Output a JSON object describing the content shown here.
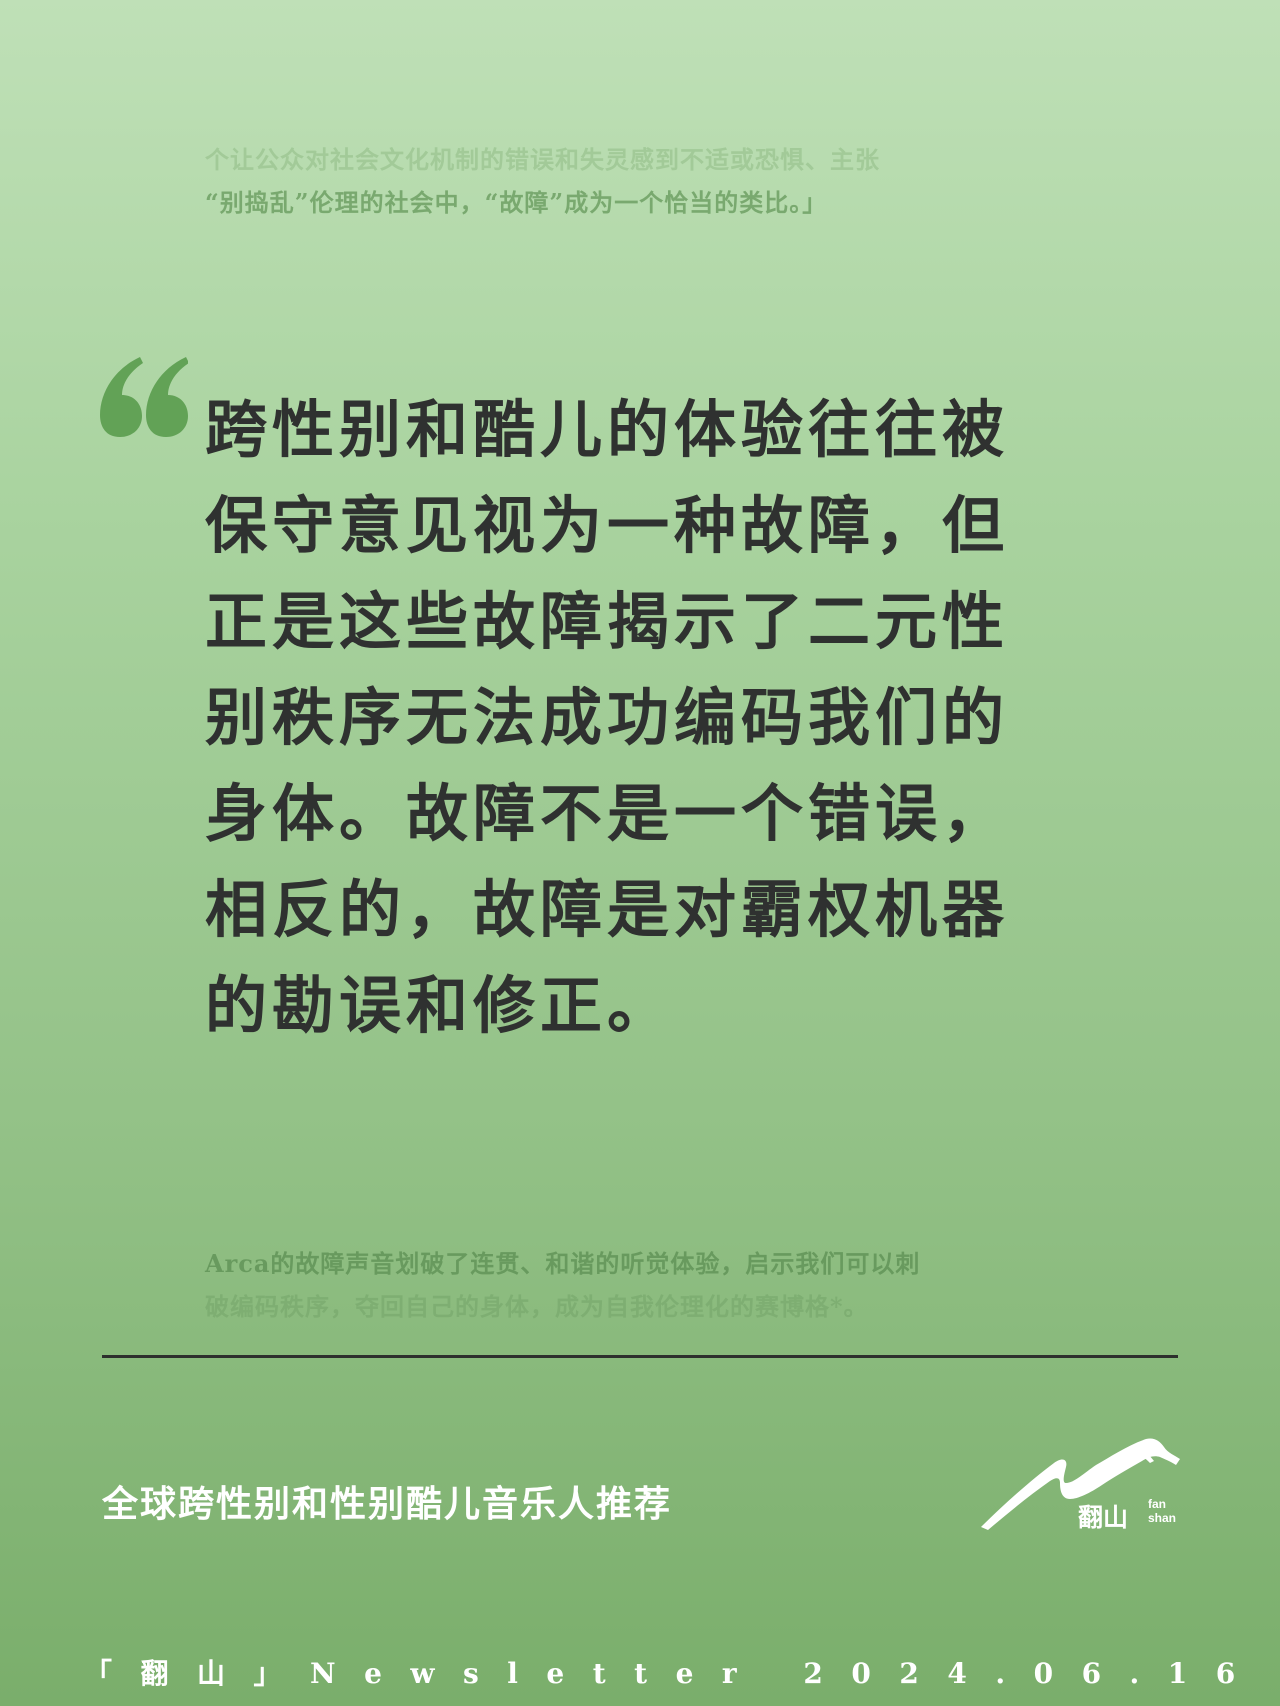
{
  "top_excerpt": {
    "line1": "个让公众对社会文化机制的错误和失灵感到不适或恐惧、主张",
    "line2": "“别捣乱”伦理的社会中，“故障”成为一个恰当的类比。」"
  },
  "quote": {
    "lines": [
      "跨性别和酷儿的体验往往被",
      "保守意见视为一种故障，但",
      "正是这些故障揭示了二元性",
      "别秩序无法成功编码我们的",
      "身体。故障不是一个错误，",
      "相反的，故障是对霸权机器",
      "的勘误和修正。"
    ]
  },
  "bottom_excerpt": {
    "line1": "Arca的故障声音划破了连贯、和谐的听觉体验，启示我们可以刺",
    "line2": "破编码秩序，夺回自己的身体，成为自我伦理化的赛博格*。"
  },
  "footer": {
    "title": "全球跨性别和性别酷儿音乐人推荐",
    "logo_cn": "翻山",
    "logo_en_1": "fan",
    "logo_en_2": "shan",
    "newsletter": "「翻山」Newsletter 2024.06.16"
  },
  "colors": {
    "quote_mark": "#62a256",
    "quote_text": "#2f3130",
    "divider": "#2d302d",
    "footer_text": "#ffffff"
  }
}
